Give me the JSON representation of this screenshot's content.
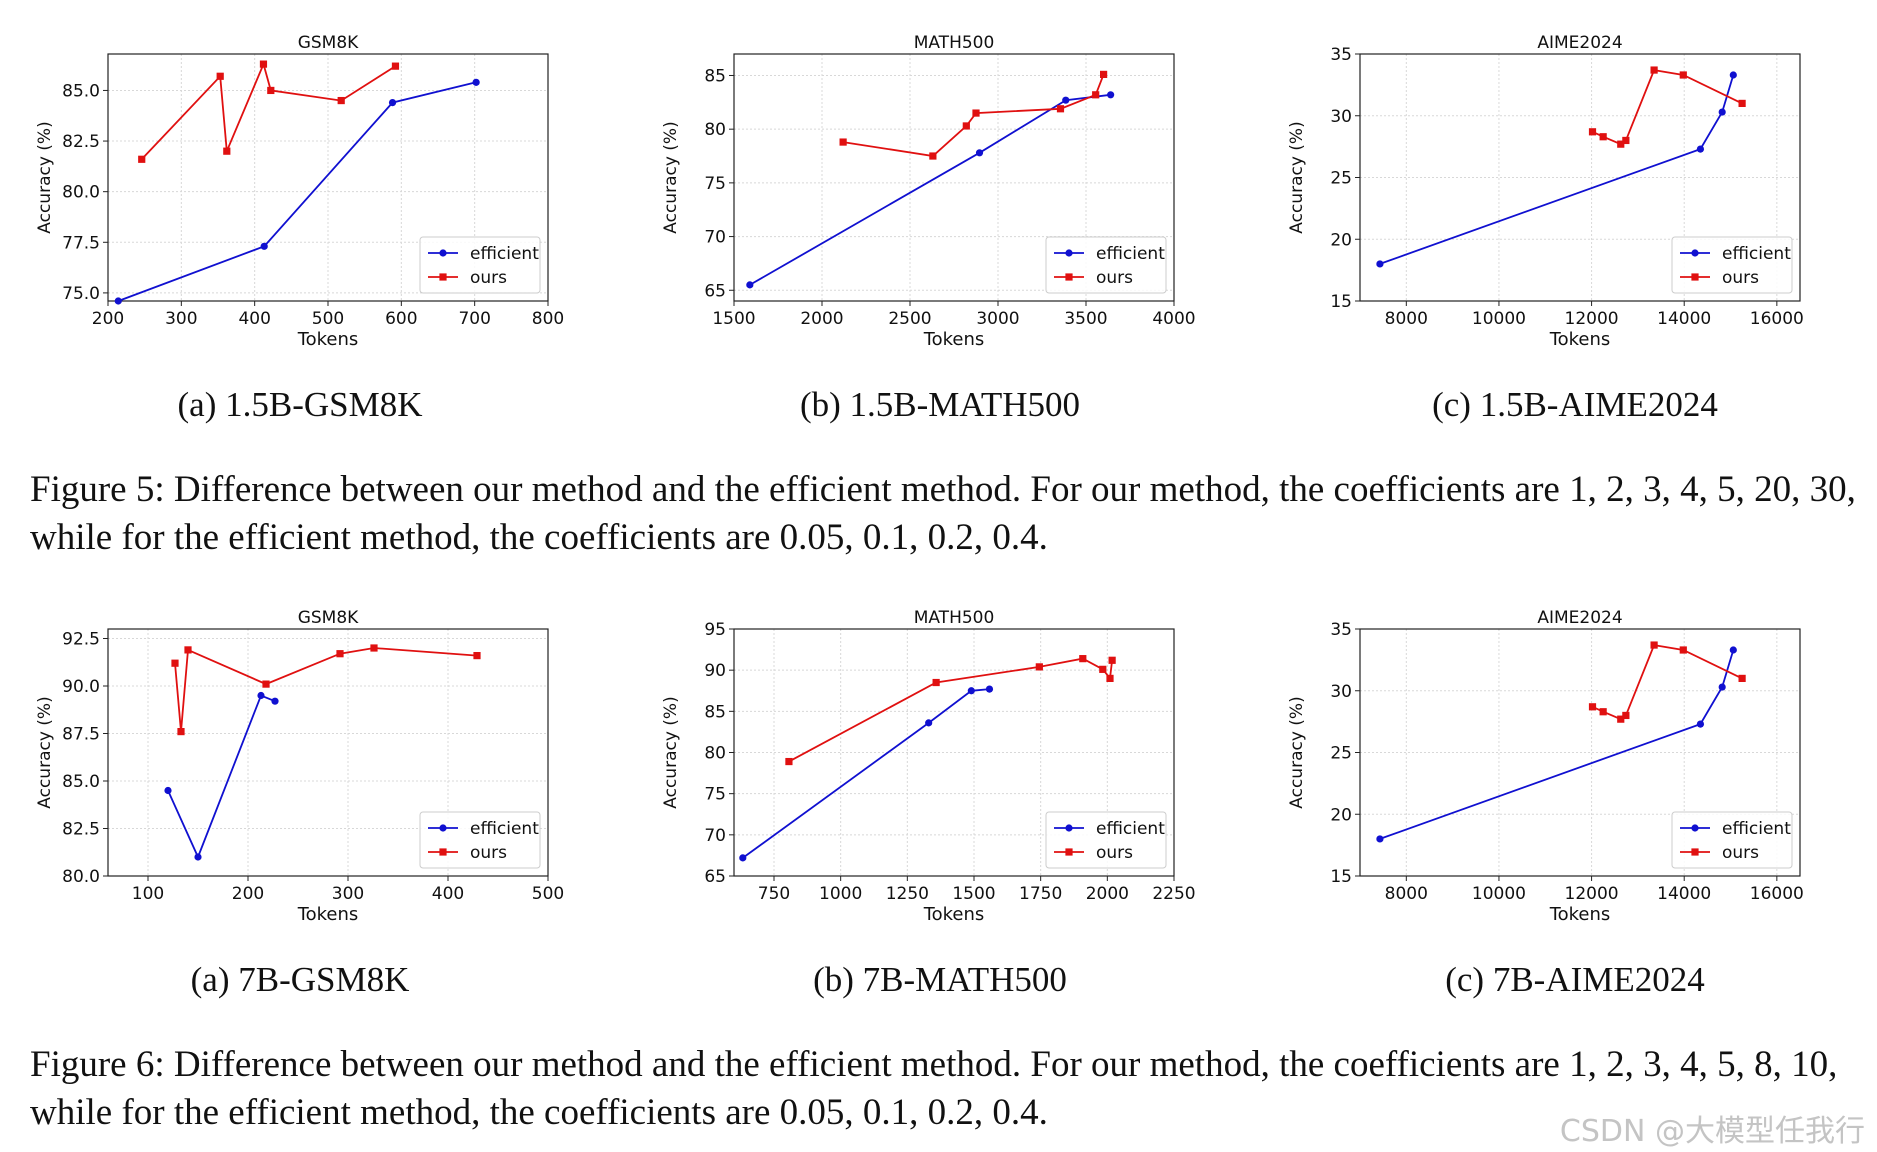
{
  "figures": [
    {
      "caption": "Figure 5: Difference between our method and the efficient method. For our method, the coefficients are 1, 2, 3, 4, 5, 20, 30, while for the efficient method, the coefficients are 0.05, 0.1, 0.2, 0.4.",
      "subcaptions": [
        "(a) 1.5B-GSM8K",
        "(b) 1.5B-MATH500",
        "(c) 1.5B-AIME2024"
      ]
    },
    {
      "caption": "Figure 6: Difference between our method and the efficient method. For our method, the coefficients are 1, 2, 3, 4, 5, 8, 10, while for the efficient method, the coefficients are 0.05, 0.1, 0.2, 0.4.",
      "subcaptions": [
        "(a) 7B-GSM8K",
        "(b) 7B-MATH500",
        "(c) 7B-AIME2024"
      ]
    }
  ],
  "watermark": "CSDN @大模型任我行",
  "colors": {
    "efficient": "#1010d0",
    "ours": "#e01010"
  },
  "chart_data": [
    {
      "type": "line",
      "title": "GSM8K",
      "xlabel": "Tokens",
      "ylabel": "Accuracy (%)",
      "xlim": [
        200,
        800
      ],
      "ylim": [
        74.6,
        86.8
      ],
      "xticks": [
        200,
        300,
        400,
        500,
        600,
        700,
        800
      ],
      "xtick_labels": [
        "200",
        "300",
        "400",
        "500",
        "600",
        "700",
        "800"
      ],
      "yticks": [
        75.0,
        77.5,
        80.0,
        82.5,
        85.0
      ],
      "ytick_labels": [
        "75.0",
        "77.5",
        "80.0",
        "82.5",
        "85.0"
      ],
      "grid": true,
      "legend": "lower right",
      "series": [
        {
          "name": "efficient",
          "marker": "circle",
          "points": [
            [
              214,
              74.6
            ],
            [
              413,
              77.3
            ],
            [
              588,
              84.4
            ],
            [
              702,
              85.4
            ]
          ]
        },
        {
          "name": "ours",
          "marker": "square",
          "points": [
            [
              246,
              81.6
            ],
            [
              353,
              85.7
            ],
            [
              362,
              82.0
            ],
            [
              412,
              86.3
            ],
            [
              422,
              85.0
            ],
            [
              518,
              84.5
            ],
            [
              592,
              86.2
            ]
          ]
        }
      ]
    },
    {
      "type": "line",
      "title": "MATH500",
      "xlabel": "Tokens",
      "ylabel": "Accuracy (%)",
      "xlim": [
        1500,
        4000
      ],
      "ylim": [
        64,
        87
      ],
      "xticks": [
        1500,
        2000,
        2500,
        3000,
        3500,
        4000
      ],
      "xtick_labels": [
        "1500",
        "2000",
        "2500",
        "3000",
        "3500",
        "4000"
      ],
      "yticks": [
        65,
        70,
        75,
        80,
        85
      ],
      "ytick_labels": [
        "65",
        "70",
        "75",
        "80",
        "85"
      ],
      "grid": true,
      "legend": "lower right",
      "series": [
        {
          "name": "efficient",
          "marker": "circle",
          "points": [
            [
              1590,
              65.5
            ],
            [
              2895,
              77.8
            ],
            [
              3385,
              82.7
            ],
            [
              3640,
              83.2
            ]
          ]
        },
        {
          "name": "ours",
          "marker": "square",
          "points": [
            [
              2120,
              78.8
            ],
            [
              2630,
              77.5
            ],
            [
              2820,
              80.3
            ],
            [
              2875,
              81.5
            ],
            [
              3355,
              81.9
            ],
            [
              3555,
              83.2
            ],
            [
              3600,
              85.1
            ]
          ]
        }
      ]
    },
    {
      "type": "line",
      "title": "AIME2024",
      "xlabel": "Tokens",
      "ylabel": "Accuracy (%)",
      "xlim": [
        7000,
        16500
      ],
      "ylim": [
        15,
        35
      ],
      "xticks": [
        8000,
        10000,
        12000,
        14000,
        16000
      ],
      "xtick_labels": [
        "8000",
        "10000",
        "12000",
        "14000",
        "16000"
      ],
      "yticks": [
        15,
        20,
        25,
        30,
        35
      ],
      "ytick_labels": [
        "15",
        "20",
        "25",
        "30",
        "35"
      ],
      "grid": true,
      "legend": "lower right",
      "series": [
        {
          "name": "efficient",
          "marker": "circle",
          "points": [
            [
              7430,
              18.0
            ],
            [
              14350,
              27.3
            ],
            [
              14820,
              30.3
            ],
            [
              15060,
              33.3
            ]
          ]
        },
        {
          "name": "ours",
          "marker": "square",
          "points": [
            [
              12020,
              28.7
            ],
            [
              12250,
              28.3
            ],
            [
              12630,
              27.7
            ],
            [
              12740,
              28.0
            ],
            [
              13350,
              33.7
            ],
            [
              13980,
              33.3
            ],
            [
              15250,
              31.0
            ]
          ]
        }
      ]
    },
    {
      "type": "line",
      "title": "GSM8K",
      "xlabel": "Tokens",
      "ylabel": "Accuracy (%)",
      "xlim": [
        60,
        500
      ],
      "ylim": [
        80,
        93
      ],
      "xticks": [
        100,
        200,
        300,
        400,
        500
      ],
      "xtick_labels": [
        "100",
        "200",
        "300",
        "400",
        "500"
      ],
      "yticks": [
        80.0,
        82.5,
        85.0,
        87.5,
        90.0,
        92.5
      ],
      "ytick_labels": [
        "80.0",
        "82.5",
        "85.0",
        "87.5",
        "90.0",
        "92.5"
      ],
      "grid": true,
      "legend": "lower right",
      "series": [
        {
          "name": "efficient",
          "marker": "circle",
          "points": [
            [
              120,
              84.5
            ],
            [
              150,
              81.0
            ],
            [
              213,
              89.5
            ],
            [
              227,
              89.2
            ]
          ]
        },
        {
          "name": "ours",
          "marker": "square",
          "points": [
            [
              127,
              91.2
            ],
            [
              133,
              87.6
            ],
            [
              140,
              91.9
            ],
            [
              218,
              90.1
            ],
            [
              292,
              91.7
            ],
            [
              326,
              92.0
            ],
            [
              429,
              91.6
            ]
          ]
        }
      ]
    },
    {
      "type": "line",
      "title": "MATH500",
      "xlabel": "Tokens",
      "ylabel": "Accuracy (%)",
      "xlim": [
        600,
        2250
      ],
      "ylim": [
        65,
        95
      ],
      "xticks": [
        750,
        1000,
        1250,
        1500,
        1750,
        2000,
        2250
      ],
      "xtick_labels": [
        "750",
        "1000",
        "1250",
        "1500",
        "1750",
        "2000",
        "2250"
      ],
      "yticks": [
        65,
        70,
        75,
        80,
        85,
        90,
        95
      ],
      "ytick_labels": [
        "65",
        "70",
        "75",
        "80",
        "85",
        "90",
        "95"
      ],
      "grid": true,
      "legend": "lower right",
      "series": [
        {
          "name": "efficient",
          "marker": "circle",
          "points": [
            [
              633,
              67.2
            ],
            [
              1330,
              83.6
            ],
            [
              1490,
              87.5
            ],
            [
              1558,
              87.7
            ]
          ]
        },
        {
          "name": "ours",
          "marker": "square",
          "points": [
            [
              806,
              78.9
            ],
            [
              1358,
              88.5
            ],
            [
              1745,
              90.4
            ],
            [
              1908,
              91.4
            ],
            [
              1983,
              90.1
            ],
            [
              2010,
              89.0
            ],
            [
              2018,
              91.2
            ]
          ]
        }
      ]
    },
    {
      "type": "line",
      "title": "AIME2024",
      "xlabel": "Tokens",
      "ylabel": "Accuracy (%)",
      "xlim": [
        7000,
        16500
      ],
      "ylim": [
        15,
        35
      ],
      "xticks": [
        8000,
        10000,
        12000,
        14000,
        16000
      ],
      "xtick_labels": [
        "8000",
        "10000",
        "12000",
        "14000",
        "16000"
      ],
      "yticks": [
        15,
        20,
        25,
        30,
        35
      ],
      "ytick_labels": [
        "15",
        "20",
        "25",
        "30",
        "35"
      ],
      "grid": true,
      "legend": "lower right",
      "series": [
        {
          "name": "efficient",
          "marker": "circle",
          "points": [
            [
              7430,
              18.0
            ],
            [
              14350,
              27.3
            ],
            [
              14820,
              30.3
            ],
            [
              15060,
              33.3
            ]
          ]
        },
        {
          "name": "ours",
          "marker": "square",
          "points": [
            [
              12020,
              28.7
            ],
            [
              12250,
              28.3
            ],
            [
              12630,
              27.7
            ],
            [
              12740,
              28.0
            ],
            [
              13350,
              33.7
            ],
            [
              13980,
              33.3
            ],
            [
              15250,
              31.0
            ]
          ]
        }
      ]
    }
  ]
}
